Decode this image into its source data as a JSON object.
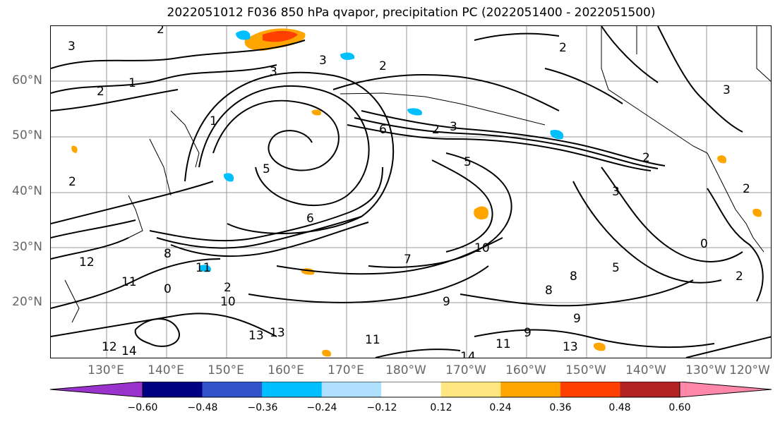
{
  "title": "2022051012 F036 850 hPa qvapor, precipitation PC (2022051400 - 2022051500)",
  "lat_labels": [
    "60°N",
    "50°N",
    "40°N",
    "30°N",
    "20°N"
  ],
  "lon_labels": [
    "130°E",
    "140°E",
    "150°E",
    "160°E",
    "170°E",
    "180°W",
    "170°W",
    "160°W",
    "150°W",
    "140°W",
    "130°W",
    "120°W"
  ],
  "colorbar": {
    "colors": [
      "#9933cc",
      "#000080",
      "#3355cc",
      "#00bfff",
      "#b0e0ff",
      "#ffffff",
      "#ffe680",
      "#ffa500",
      "#ff4000",
      "#b22222",
      "#ff88aa"
    ],
    "ticks": [
      "−0.60",
      "−0.48",
      "−0.36",
      "−0.24",
      "−0.12",
      "0.12",
      "0.24",
      "0.36",
      "0.48",
      "0.60"
    ]
  },
  "contour_labels": [
    "3",
    "2",
    "1",
    "2",
    "3",
    "1",
    "2",
    "3",
    "2",
    "3",
    "2",
    "3",
    "2",
    "3",
    "5",
    "5",
    "6",
    "6",
    "7",
    "8",
    "8",
    "9",
    "9",
    "9",
    "0",
    "11",
    "12",
    "13",
    "13",
    "13",
    "14",
    "14",
    "11",
    "11",
    "10",
    "10",
    "5",
    "2",
    "2",
    "2",
    "0",
    "2",
    "8",
    "12",
    "11"
  ]
}
